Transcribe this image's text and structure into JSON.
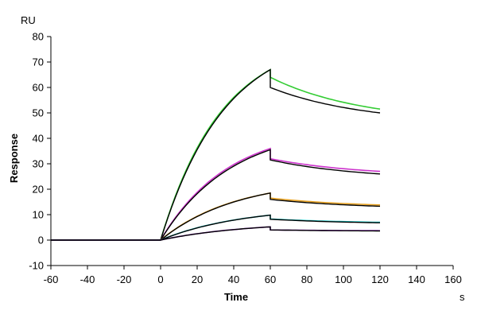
{
  "chart_data": {
    "type": "line",
    "y_unit": "RU",
    "x_unit": "s",
    "xlabel": "Time",
    "ylabel": "Response",
    "xlim": [
      -60,
      160
    ],
    "ylim": [
      -10,
      80
    ],
    "x_ticks": [
      -60,
      -40,
      -20,
      0,
      20,
      40,
      60,
      80,
      100,
      120,
      140,
      160
    ],
    "y_ticks": [
      -10,
      0,
      10,
      20,
      30,
      40,
      50,
      60,
      70,
      80
    ],
    "grid": false,
    "association_start": 0,
    "dissociation_start": 60,
    "end": 120,
    "series": [
      {
        "color": "#33cc33",
        "ka_end": 67,
        "kd_end": 51.5,
        "kd_start": 64,
        "kind": "measured"
      },
      {
        "color": "#000000",
        "ka_end": 67,
        "kd_end": 50,
        "kd_start": 60,
        "kind": "fit"
      },
      {
        "color": "#cc33cc",
        "ka_end": 36,
        "kd_end": 27,
        "kd_start": 32,
        "kind": "measured"
      },
      {
        "color": "#000000",
        "ka_end": 35.5,
        "kd_end": 26,
        "kd_start": 31.5,
        "kind": "fit"
      },
      {
        "color": "#e6a020",
        "ka_end": 18.5,
        "kd_end": 13.8,
        "kd_start": 16.5,
        "kind": "measured"
      },
      {
        "color": "#000000",
        "ka_end": 18.5,
        "kd_end": 13.3,
        "kd_start": 16,
        "kind": "fit"
      },
      {
        "color": "#22cccc",
        "ka_end": 9.8,
        "kd_end": 7,
        "kd_start": 8.3,
        "kind": "measured"
      },
      {
        "color": "#000000",
        "ka_end": 9.8,
        "kd_end": 6.8,
        "kd_start": 8.2,
        "kind": "fit"
      },
      {
        "color": "#9933cc",
        "ka_end": 5.2,
        "kd_end": 3.7,
        "kd_start": 4,
        "kind": "measured"
      },
      {
        "color": "#000000",
        "ka_end": 5.2,
        "kd_end": 3.6,
        "kd_start": 4,
        "kind": "fit"
      }
    ]
  }
}
